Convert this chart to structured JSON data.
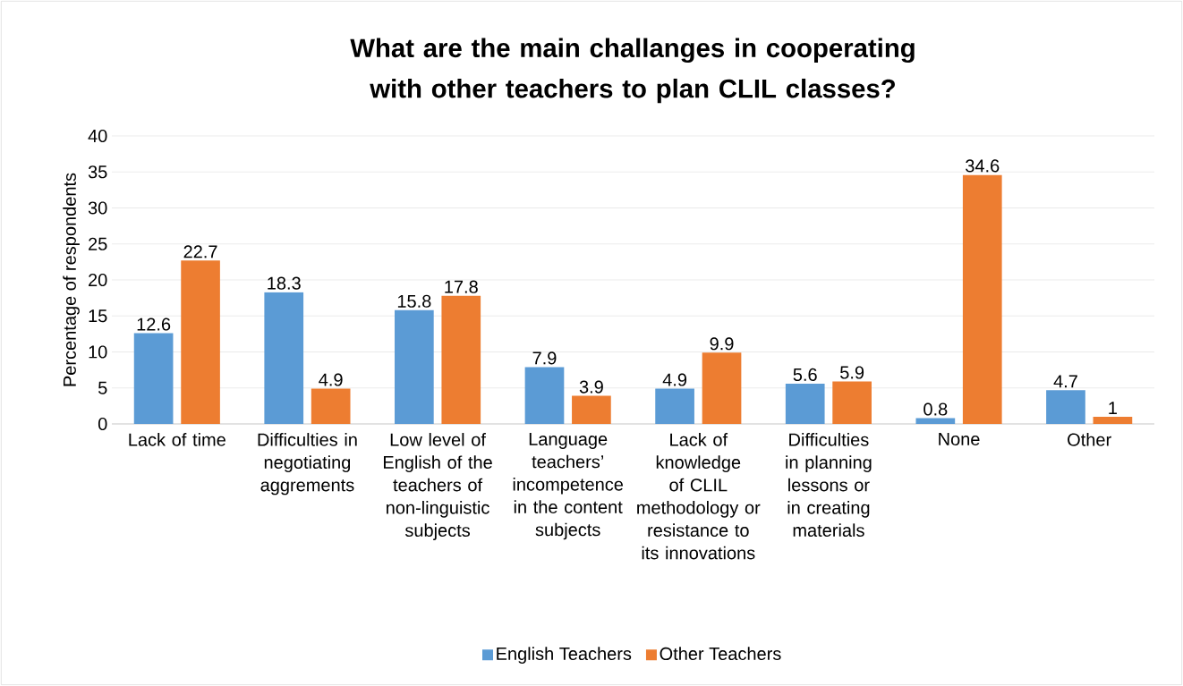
{
  "chart_data": {
    "type": "bar",
    "title": "What are the main challanges in cooperating with other teachers to plan CLIL classes?",
    "ylabel": "Percentage of respondents",
    "categories": [
      "Lack of time",
      "Difficulties in negotiating aggrements",
      "Low level of English of the teachers of non-linguistic subjects",
      "Language teachers’ incompetence in the content subjects",
      "Lack of knowledge of CLIL methodology or resistance to its innovations",
      "Difficulties in planning lessons or in creating materials",
      "None",
      "Other"
    ],
    "series": [
      {
        "name": "English Teachers",
        "color": "#5b9bd5",
        "values": [
          12.6,
          18.3,
          15.8,
          7.9,
          4.9,
          5.6,
          0.8,
          4.7
        ]
      },
      {
        "name": "Other Teachers",
        "color": "#ed7d31",
        "values": [
          22.7,
          4.9,
          17.8,
          3.9,
          9.9,
          5.9,
          34.6,
          1
        ]
      }
    ],
    "ylim": [
      0,
      40
    ],
    "yticks": [
      0,
      5,
      10,
      15,
      20,
      25,
      30,
      35,
      40
    ],
    "grid": "y",
    "legend": "bottom",
    "data_labels": true
  }
}
